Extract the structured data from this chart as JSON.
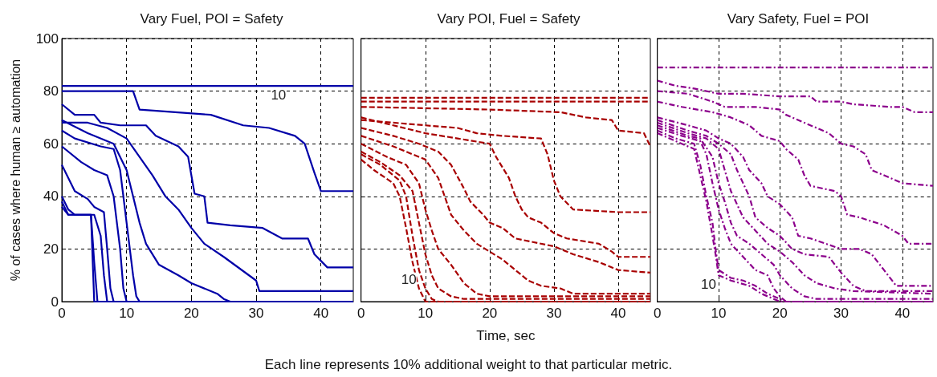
{
  "chart_data": [
    {
      "type": "line",
      "title": "Vary Fuel, POI = Safety",
      "ylabel": "% of cases where human ≥ automation",
      "xlim": [
        0,
        45
      ],
      "xticks": [
        0,
        10,
        20,
        30,
        40
      ],
      "ylim": [
        0,
        100
      ],
      "yticks": [
        0,
        20,
        40,
        60,
        80,
        100
      ],
      "grid": true,
      "marker": "none",
      "line_style": "solid",
      "annotations": [
        {
          "text": "10",
          "x": 35,
          "y": 82
        }
      ],
      "series": [
        {
          "color": "#0000a8",
          "x": [
            0,
            45
          ],
          "values": [
            82,
            82
          ]
        },
        {
          "color": "#0000a8",
          "x": [
            0,
            11,
            12,
            23,
            28,
            32,
            36,
            37.5,
            39,
            40,
            45
          ],
          "values": [
            80,
            80,
            73,
            71,
            67,
            66,
            63,
            60,
            49,
            42,
            42
          ]
        },
        {
          "color": "#0000a8",
          "x": [
            0,
            2,
            5,
            6,
            9,
            13,
            14.5,
            18,
            19.5,
            20.5,
            22,
            22.5,
            26,
            31,
            34,
            38,
            39,
            41,
            45
          ],
          "values": [
            75,
            71,
            71,
            68,
            67,
            67,
            63,
            59,
            55,
            41,
            40,
            30,
            29,
            28,
            24,
            24,
            18,
            13,
            13
          ]
        },
        {
          "color": "#0000a8",
          "x": [
            0,
            4,
            7,
            10,
            12,
            14,
            16,
            18,
            20,
            22,
            25,
            30,
            30.5,
            45
          ],
          "values": [
            68,
            68,
            66,
            62,
            55,
            48,
            40,
            35,
            28,
            22,
            17,
            8,
            4,
            4
          ]
        },
        {
          "color": "#0000a8",
          "x": [
            0,
            4,
            8,
            10,
            11,
            12,
            13,
            15,
            18,
            20,
            24,
            25,
            26,
            45
          ],
          "values": [
            69,
            64,
            60,
            50,
            40,
            30,
            22,
            14,
            10,
            7,
            3,
            1,
            0,
            0
          ]
        },
        {
          "color": "#0000a8",
          "x": [
            0,
            2,
            6,
            8,
            9,
            10,
            11,
            11.5,
            12,
            45
          ],
          "values": [
            65,
            62,
            59,
            58,
            50,
            30,
            10,
            2,
            0,
            0
          ]
        },
        {
          "color": "#0000a8",
          "x": [
            0,
            3,
            5,
            7,
            8,
            9,
            9.5,
            10,
            45
          ],
          "values": [
            59,
            53,
            50,
            48,
            40,
            20,
            5,
            0,
            0
          ]
        },
        {
          "color": "#0000a8",
          "x": [
            0,
            2,
            4,
            5,
            6.5,
            7,
            7.5,
            8,
            45
          ],
          "values": [
            52,
            42,
            39,
            36,
            34,
            20,
            5,
            0,
            0
          ]
        },
        {
          "color": "#0000a8",
          "x": [
            0,
            1,
            2,
            5,
            6,
            6.5,
            7,
            45
          ],
          "values": [
            40,
            35,
            33,
            33,
            25,
            10,
            0,
            0
          ]
        },
        {
          "color": "#0000a8",
          "x": [
            0,
            1,
            4.5,
            5,
            5.5,
            45
          ],
          "values": [
            38,
            33,
            33,
            15,
            0,
            0
          ]
        },
        {
          "color": "#0000a8",
          "x": [
            0,
            1,
            4.5,
            5,
            45
          ],
          "values": [
            36,
            33,
            33,
            0,
            0
          ]
        }
      ]
    },
    {
      "type": "line",
      "title": "Vary POI, Fuel = Safety",
      "xlabel": "Time, sec",
      "xlim": [
        0,
        45
      ],
      "xticks": [
        0,
        10,
        20,
        30,
        40
      ],
      "ylim": [
        0,
        100
      ],
      "yticks": [
        0,
        20,
        40,
        60,
        80,
        100
      ],
      "tick_labels": "x",
      "grid": true,
      "marker": "none",
      "line_style": "dashed",
      "annotations": [
        {
          "text": "10",
          "x": 9,
          "y": 12
        },
        "Each line represents 10% additional weight to that particular metric."
      ],
      "series": [
        {
          "color": "#a80000",
          "x": [
            0,
            45
          ],
          "values": [
            77.5,
            77.5
          ]
        },
        {
          "color": "#a80000",
          "x": [
            0,
            45
          ],
          "values": [
            76,
            76
          ]
        },
        {
          "color": "#a80000",
          "x": [
            0,
            20,
            31,
            35,
            39,
            40,
            44,
            45
          ],
          "values": [
            74,
            73,
            72,
            70,
            69,
            65,
            64,
            59
          ]
        },
        {
          "color": "#a80000",
          "x": [
            0,
            10,
            15,
            18,
            22,
            28,
            29,
            30,
            31,
            33,
            40,
            45
          ],
          "values": [
            69,
            67,
            66,
            64,
            63,
            62,
            56,
            46,
            40,
            35,
            34,
            34
          ]
        },
        {
          "color": "#a80000",
          "x": [
            0,
            5,
            10,
            15,
            20,
            21,
            23,
            24,
            25,
            26,
            28,
            30,
            32,
            37,
            39,
            40,
            45
          ],
          "values": [
            70,
            67,
            64,
            62,
            60,
            55,
            47,
            40,
            35,
            32,
            30,
            26,
            24,
            22,
            19,
            17,
            17
          ]
        },
        {
          "color": "#a80000",
          "x": [
            0,
            5,
            9,
            12,
            14,
            16,
            17,
            19,
            20,
            22,
            24,
            30,
            33,
            37,
            40,
            45
          ],
          "values": [
            66,
            63,
            60,
            57,
            52,
            43,
            38,
            33,
            30,
            28,
            24,
            21,
            18,
            15,
            12,
            11
          ]
        },
        {
          "color": "#a80000",
          "x": [
            0,
            5,
            10,
            12,
            13,
            14,
            16,
            18,
            20,
            22,
            24,
            26,
            28,
            31,
            33,
            45
          ],
          "values": [
            63,
            59,
            54,
            47,
            40,
            33,
            27,
            22,
            19,
            16,
            12,
            8,
            6,
            5,
            3,
            3
          ]
        },
        {
          "color": "#a80000",
          "x": [
            0,
            4,
            7,
            9,
            10,
            11,
            12,
            14,
            16,
            18,
            20,
            45
          ],
          "values": [
            60,
            55,
            52,
            45,
            35,
            27,
            20,
            14,
            7,
            3,
            2,
            2
          ]
        },
        {
          "color": "#a80000",
          "x": [
            0,
            3,
            6,
            8,
            9,
            10,
            11,
            12,
            14,
            16,
            45
          ],
          "values": [
            57,
            53,
            48,
            42,
            30,
            18,
            10,
            5,
            2,
            1,
            1
          ]
        },
        {
          "color": "#a80000",
          "x": [
            0,
            3,
            6,
            7,
            8,
            9,
            10,
            11,
            12,
            45
          ],
          "values": [
            56,
            52,
            46,
            40,
            25,
            12,
            5,
            1,
            0,
            0
          ]
        },
        {
          "color": "#a80000",
          "x": [
            0,
            2,
            5,
            6,
            7,
            8,
            9,
            10,
            45
          ],
          "values": [
            54,
            50,
            45,
            40,
            28,
            15,
            5,
            0,
            0
          ]
        }
      ]
    },
    {
      "type": "line",
      "title": "Vary Safety, Fuel = POI",
      "xlim": [
        0,
        45
      ],
      "xticks": [
        0,
        10,
        20,
        30,
        40
      ],
      "ylim": [
        0,
        100
      ],
      "yticks": [
        0,
        20,
        40,
        60,
        80,
        100
      ],
      "tick_labels": "x",
      "grid": true,
      "marker": "none",
      "line_style": "dashdot",
      "annotations": [
        {
          "text": "10",
          "x": 10,
          "y": 10
        }
      ],
      "series": [
        {
          "color": "#8c008c",
          "x": [
            0,
            45
          ],
          "values": [
            89,
            89
          ]
        },
        {
          "color": "#8c008c",
          "x": [
            0,
            3,
            6,
            10,
            14,
            20,
            25,
            26,
            30,
            32,
            38,
            40,
            42,
            45
          ],
          "values": [
            84,
            82,
            81,
            79,
            79,
            78,
            78,
            76,
            76,
            75,
            74,
            74,
            72,
            72
          ]
        },
        {
          "color": "#8c008c",
          "x": [
            0,
            5,
            9,
            11,
            16,
            20,
            21,
            24,
            26,
            28,
            30,
            32,
            34,
            35,
            38,
            40,
            45
          ],
          "values": [
            80,
            79,
            76,
            74,
            74,
            73,
            71,
            68,
            66,
            64,
            60,
            59,
            56,
            50,
            47,
            45,
            44
          ]
        },
        {
          "color": "#8c008c",
          "x": [
            0,
            4,
            9,
            12,
            15,
            17,
            20,
            21,
            23,
            24,
            25,
            29,
            30,
            31,
            33,
            37,
            40,
            41,
            45
          ],
          "values": [
            76,
            74,
            72,
            70,
            67,
            63,
            61,
            58,
            54,
            48,
            44,
            42,
            40,
            33,
            32,
            29,
            25,
            22,
            22
          ]
        },
        {
          "color": "#8c008c",
          "x": [
            0,
            5,
            8,
            10,
            12,
            14,
            15,
            17,
            18,
            20,
            22,
            23,
            25,
            30,
            33,
            35,
            37,
            39,
            45
          ],
          "values": [
            70,
            67,
            65,
            62,
            60,
            55,
            50,
            45,
            40,
            37,
            32,
            25,
            24,
            20,
            20,
            18,
            12,
            6,
            6
          ]
        },
        {
          "color": "#8c008c",
          "x": [
            0,
            5,
            8,
            10,
            12,
            13,
            14,
            15,
            16,
            18,
            20,
            22,
            24,
            28,
            30,
            32,
            34,
            45
          ],
          "values": [
            69,
            65,
            63,
            60,
            56,
            50,
            45,
            40,
            32,
            28,
            25,
            20,
            18,
            17,
            11,
            6,
            4,
            4
          ]
        },
        {
          "color": "#8c008c",
          "x": [
            0,
            5,
            8,
            10,
            11,
            12,
            13,
            14,
            16,
            18,
            20,
            22,
            24,
            26,
            29,
            32,
            45
          ],
          "values": [
            68,
            64,
            62,
            58,
            50,
            42,
            37,
            32,
            27,
            22,
            19,
            15,
            10,
            7,
            5,
            4,
            3
          ]
        },
        {
          "color": "#8c008c",
          "x": [
            0,
            5,
            7,
            9,
            10,
            11,
            12,
            13,
            15,
            17,
            19,
            20,
            22,
            24,
            26,
            45
          ],
          "values": [
            67,
            63,
            62,
            55,
            45,
            38,
            30,
            25,
            22,
            18,
            14,
            10,
            5,
            2,
            1,
            1
          ]
        },
        {
          "color": "#8c008c",
          "x": [
            0,
            4,
            7,
            8,
            9,
            10,
            11,
            12,
            14,
            16,
            18,
            19,
            20,
            21,
            45
          ],
          "values": [
            66,
            63,
            61,
            56,
            45,
            35,
            28,
            22,
            17,
            12,
            10,
            5,
            2,
            0,
            0
          ]
        },
        {
          "color": "#8c008c",
          "x": [
            0,
            3,
            6,
            7,
            8,
            9,
            9.5,
            10,
            12,
            14,
            16,
            18,
            20,
            21,
            45
          ],
          "values": [
            65,
            62,
            60,
            52,
            40,
            30,
            20,
            12,
            9,
            8,
            6,
            3,
            1,
            0,
            0
          ]
        },
        {
          "color": "#8c008c",
          "x": [
            0,
            3,
            6,
            7,
            8,
            9,
            9.5,
            10,
            12,
            15,
            17,
            19,
            20,
            45
          ],
          "values": [
            64,
            61,
            58,
            48,
            38,
            25,
            18,
            10,
            8,
            6,
            3,
            1,
            0,
            0
          ]
        }
      ]
    }
  ]
}
